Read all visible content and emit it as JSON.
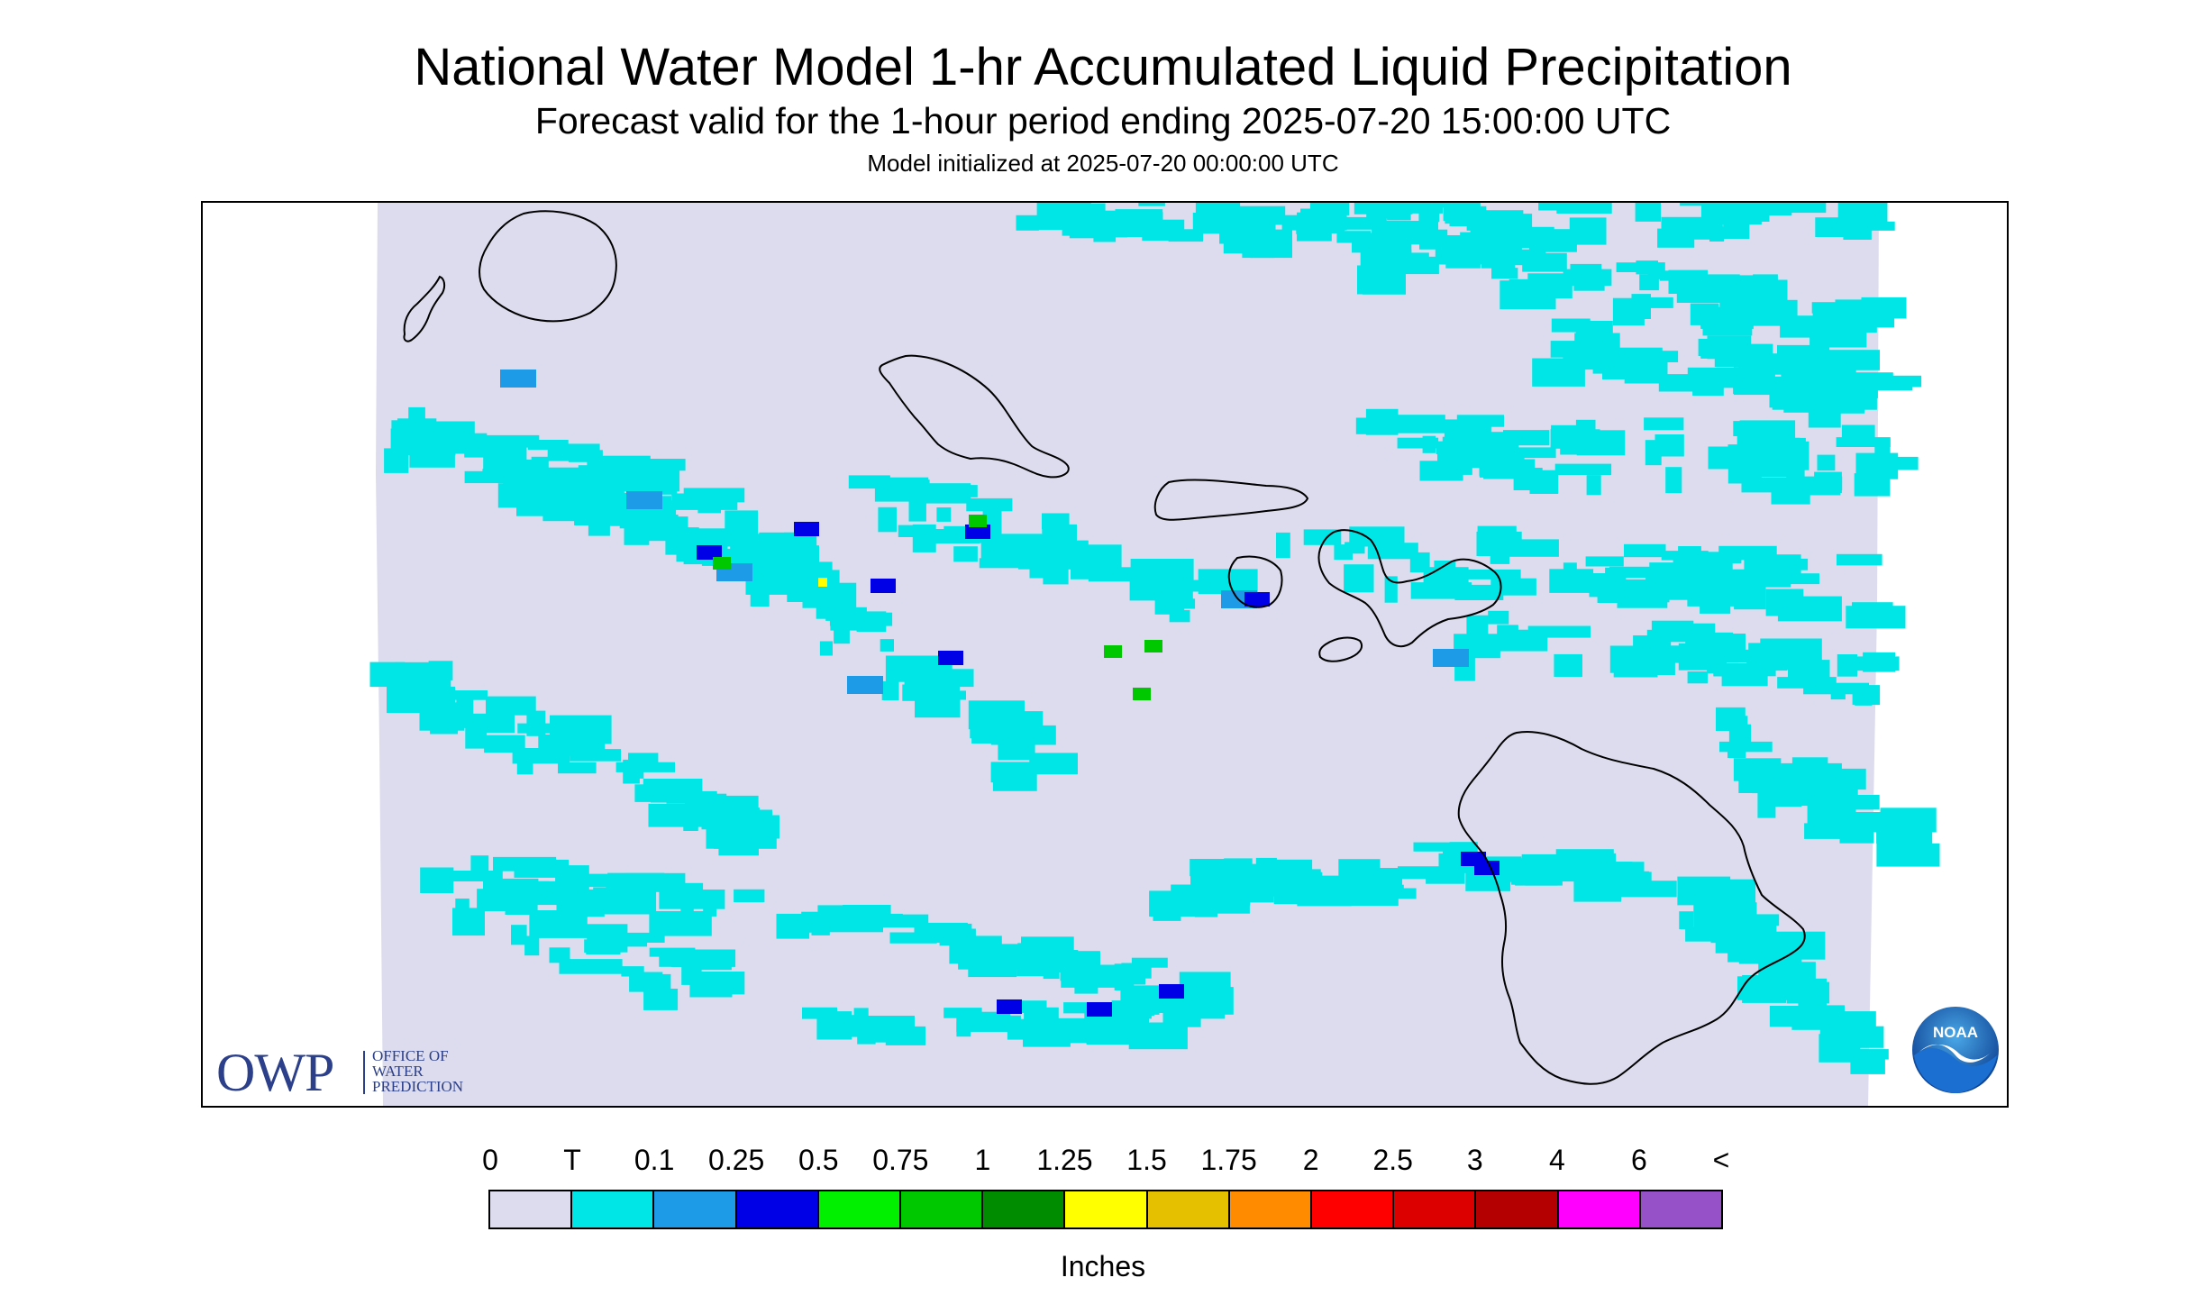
{
  "header": {
    "title": "National Water Model 1-hr Accumulated Liquid Precipitation",
    "subtitle": "Forecast valid for the 1-hour period ending 2025-07-20 15:00:00 UTC",
    "init": "Model initialized at 2025-07-20 00:00:00 UTC"
  },
  "logos": {
    "owp_big": "OWP",
    "owp_line1": "OFFICE OF",
    "owp_line2": "WATER",
    "owp_line3": "PREDICTION",
    "noaa": "NOAA"
  },
  "legend": {
    "labels": [
      "0",
      "T",
      "0.1",
      "0.25",
      "0.5",
      "0.75",
      "1",
      "1.25",
      "1.5",
      "1.75",
      "2",
      "2.5",
      "3",
      "4",
      "6",
      "<"
    ],
    "colors": [
      "#dcdcee",
      "#00e5e5",
      "#1e9be6",
      "#0000e6",
      "#00f000",
      "#00c800",
      "#008c00",
      "#ffff00",
      "#e5c000",
      "#ff8c00",
      "#ff0000",
      "#dc0000",
      "#b40000",
      "#ff00ff",
      "#9650c8"
    ],
    "units": "Inches"
  },
  "map": {
    "background_color": "#dcdcee",
    "trace_color": "#00e5e5",
    "light_color": "#1e9be6",
    "moderate_color": "#0000e6",
    "heavy_color": "#00c800",
    "peak_color": "#ffff00",
    "coastline_color": "#000000"
  }
}
